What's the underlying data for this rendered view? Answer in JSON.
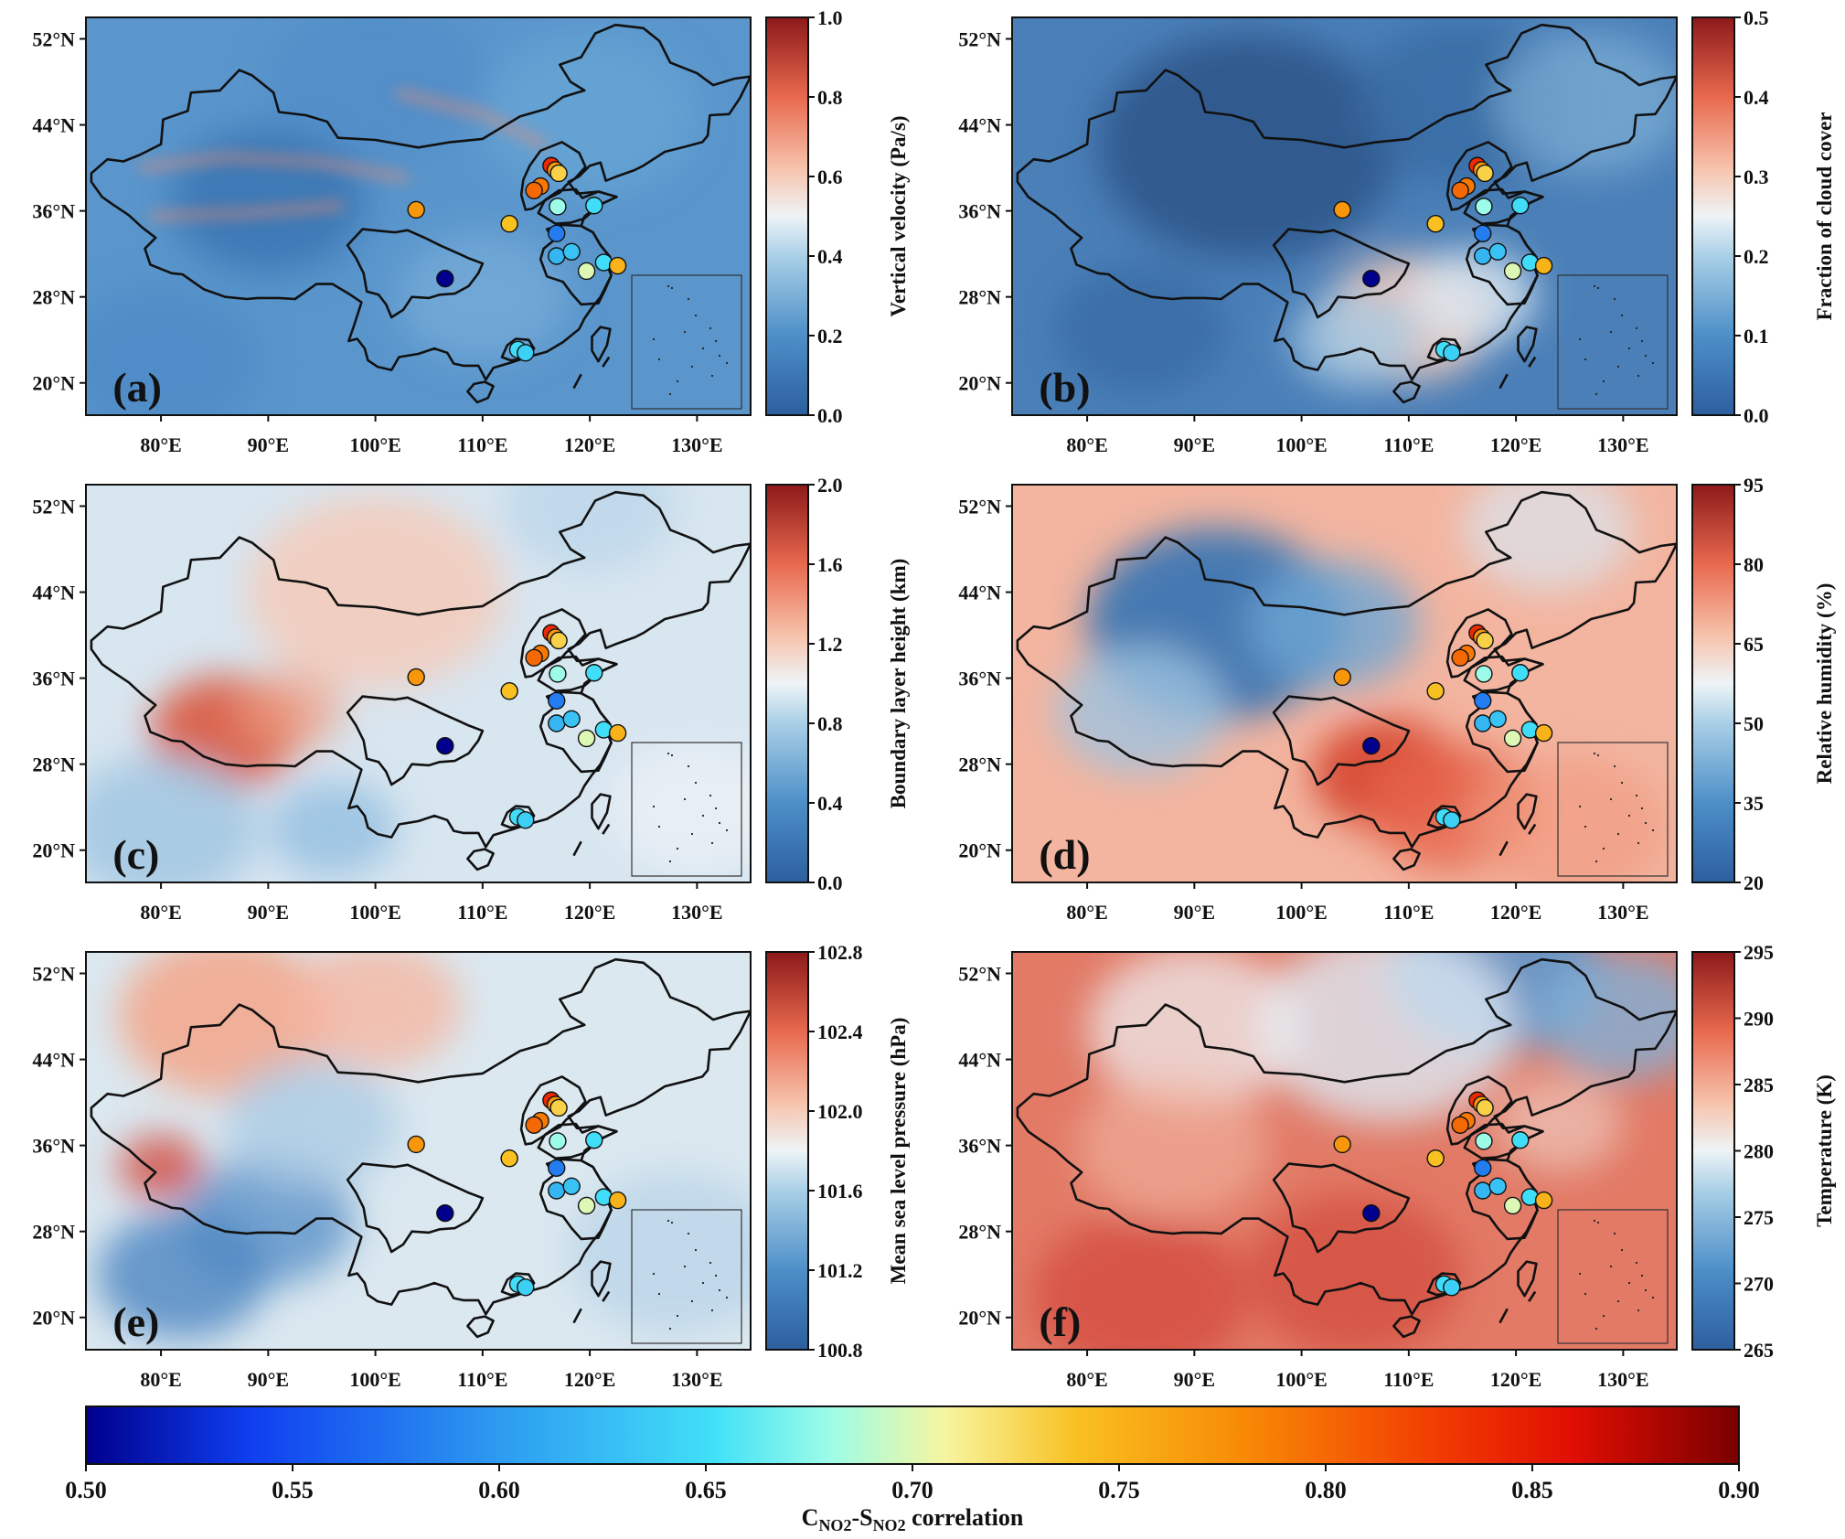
{
  "map_extent": {
    "lon": [
      73,
      135
    ],
    "lat": [
      17,
      54
    ]
  },
  "lon_ticks": [
    80,
    90,
    100,
    110,
    120,
    130
  ],
  "lat_ticks": [
    20,
    28,
    36,
    44,
    52
  ],
  "lon_tick_labels": [
    "80°E",
    "90°E",
    "100°E",
    "110°E",
    "120°E",
    "130°E"
  ],
  "lat_tick_labels": [
    "20°N",
    "28°N",
    "36°N",
    "44°N",
    "52°N"
  ],
  "panels": [
    {
      "letter": "(a)",
      "variable": "vertical-velocity",
      "colorbar_label": "Vertical velocity (Pa/s)",
      "colorbar_ticks": [
        "0.0",
        "0.2",
        "0.4",
        "0.6",
        "0.8",
        "1.0"
      ],
      "field_pattern": "blue"
    },
    {
      "letter": "(b)",
      "variable": "cloud-cover",
      "colorbar_label": "Fraction of cloud cover",
      "colorbar_ticks": [
        "0.0",
        "0.1",
        "0.2",
        "0.3",
        "0.4",
        "0.5"
      ],
      "field_pattern": "cloud"
    },
    {
      "letter": "(c)",
      "variable": "boundary-layer-height",
      "colorbar_label": "Boundary layer height (km)",
      "colorbar_ticks": [
        "0.0",
        "0.4",
        "0.8",
        "1.2",
        "1.6",
        "2.0"
      ],
      "field_pattern": "pale"
    },
    {
      "letter": "(d)",
      "variable": "relative-humidity",
      "colorbar_label": "Relative humidity (%)",
      "colorbar_ticks": [
        "20",
        "35",
        "50",
        "65",
        "80",
        "95"
      ],
      "field_pattern": "humid"
    },
    {
      "letter": "(e)",
      "variable": "sea-level-pressure",
      "colorbar_label": "Mean sea level pressure (hPa)",
      "colorbar_ticks": [
        "100.8",
        "101.2",
        "101.6",
        "102.0",
        "102.4",
        "102.8"
      ],
      "field_pattern": "pressure"
    },
    {
      "letter": "(f)",
      "variable": "temperature",
      "colorbar_label": "Temperature (K)",
      "colorbar_ticks": [
        "265",
        "270",
        "275",
        "280",
        "285",
        "290",
        "295"
      ],
      "field_pattern": "warm"
    }
  ],
  "stations": [
    {
      "lon": 116.4,
      "lat": 40.2,
      "r": 0.84
    },
    {
      "lon": 116.8,
      "lat": 39.8,
      "r": 0.77
    },
    {
      "lon": 117.1,
      "lat": 39.5,
      "r": 0.73
    },
    {
      "lon": 115.4,
      "lat": 38.3,
      "r": 0.79
    },
    {
      "lon": 114.8,
      "lat": 37.9,
      "r": 0.8
    },
    {
      "lon": 103.8,
      "lat": 36.1,
      "r": 0.77
    },
    {
      "lon": 112.5,
      "lat": 34.8,
      "r": 0.74
    },
    {
      "lon": 117.0,
      "lat": 36.4,
      "r": 0.68
    },
    {
      "lon": 120.4,
      "lat": 36.5,
      "r": 0.65
    },
    {
      "lon": 116.9,
      "lat": 33.9,
      "r": 0.58
    },
    {
      "lon": 116.9,
      "lat": 31.8,
      "r": 0.62
    },
    {
      "lon": 118.3,
      "lat": 32.2,
      "r": 0.63
    },
    {
      "lon": 119.7,
      "lat": 30.4,
      "r": 0.7
    },
    {
      "lon": 121.3,
      "lat": 31.2,
      "r": 0.65
    },
    {
      "lon": 122.6,
      "lat": 30.9,
      "r": 0.75
    },
    {
      "lon": 106.5,
      "lat": 29.7,
      "r": 0.5
    },
    {
      "lon": 113.3,
      "lat": 23.1,
      "r": 0.65
    },
    {
      "lon": 114.0,
      "lat": 22.8,
      "r": 0.64
    }
  ],
  "corr_colorbar": {
    "label_main": "C",
    "label_sub1": "NO2",
    "label_mid": "-S",
    "label_sub2": "NO2",
    "label_tail": " correlation",
    "ticks": [
      "0.50",
      "0.55",
      "0.60",
      "0.65",
      "0.70",
      "0.75",
      "0.80",
      "0.85",
      "0.90"
    ]
  },
  "colors": {
    "diverging": [
      "#2c5f9e",
      "#3b7fbf",
      "#77b1d9",
      "#e8f1f6",
      "#f4a58c",
      "#d6412e",
      "#8c1a1a"
    ],
    "correlation": [
      "#00008c",
      "#0f3ff0",
      "#2d9bf0",
      "#41e0f8",
      "#9cfce8",
      "#f7f5a0",
      "#f9c021",
      "#f88a05",
      "#f13a02",
      "#e00e02",
      "#7a0000"
    ]
  }
}
